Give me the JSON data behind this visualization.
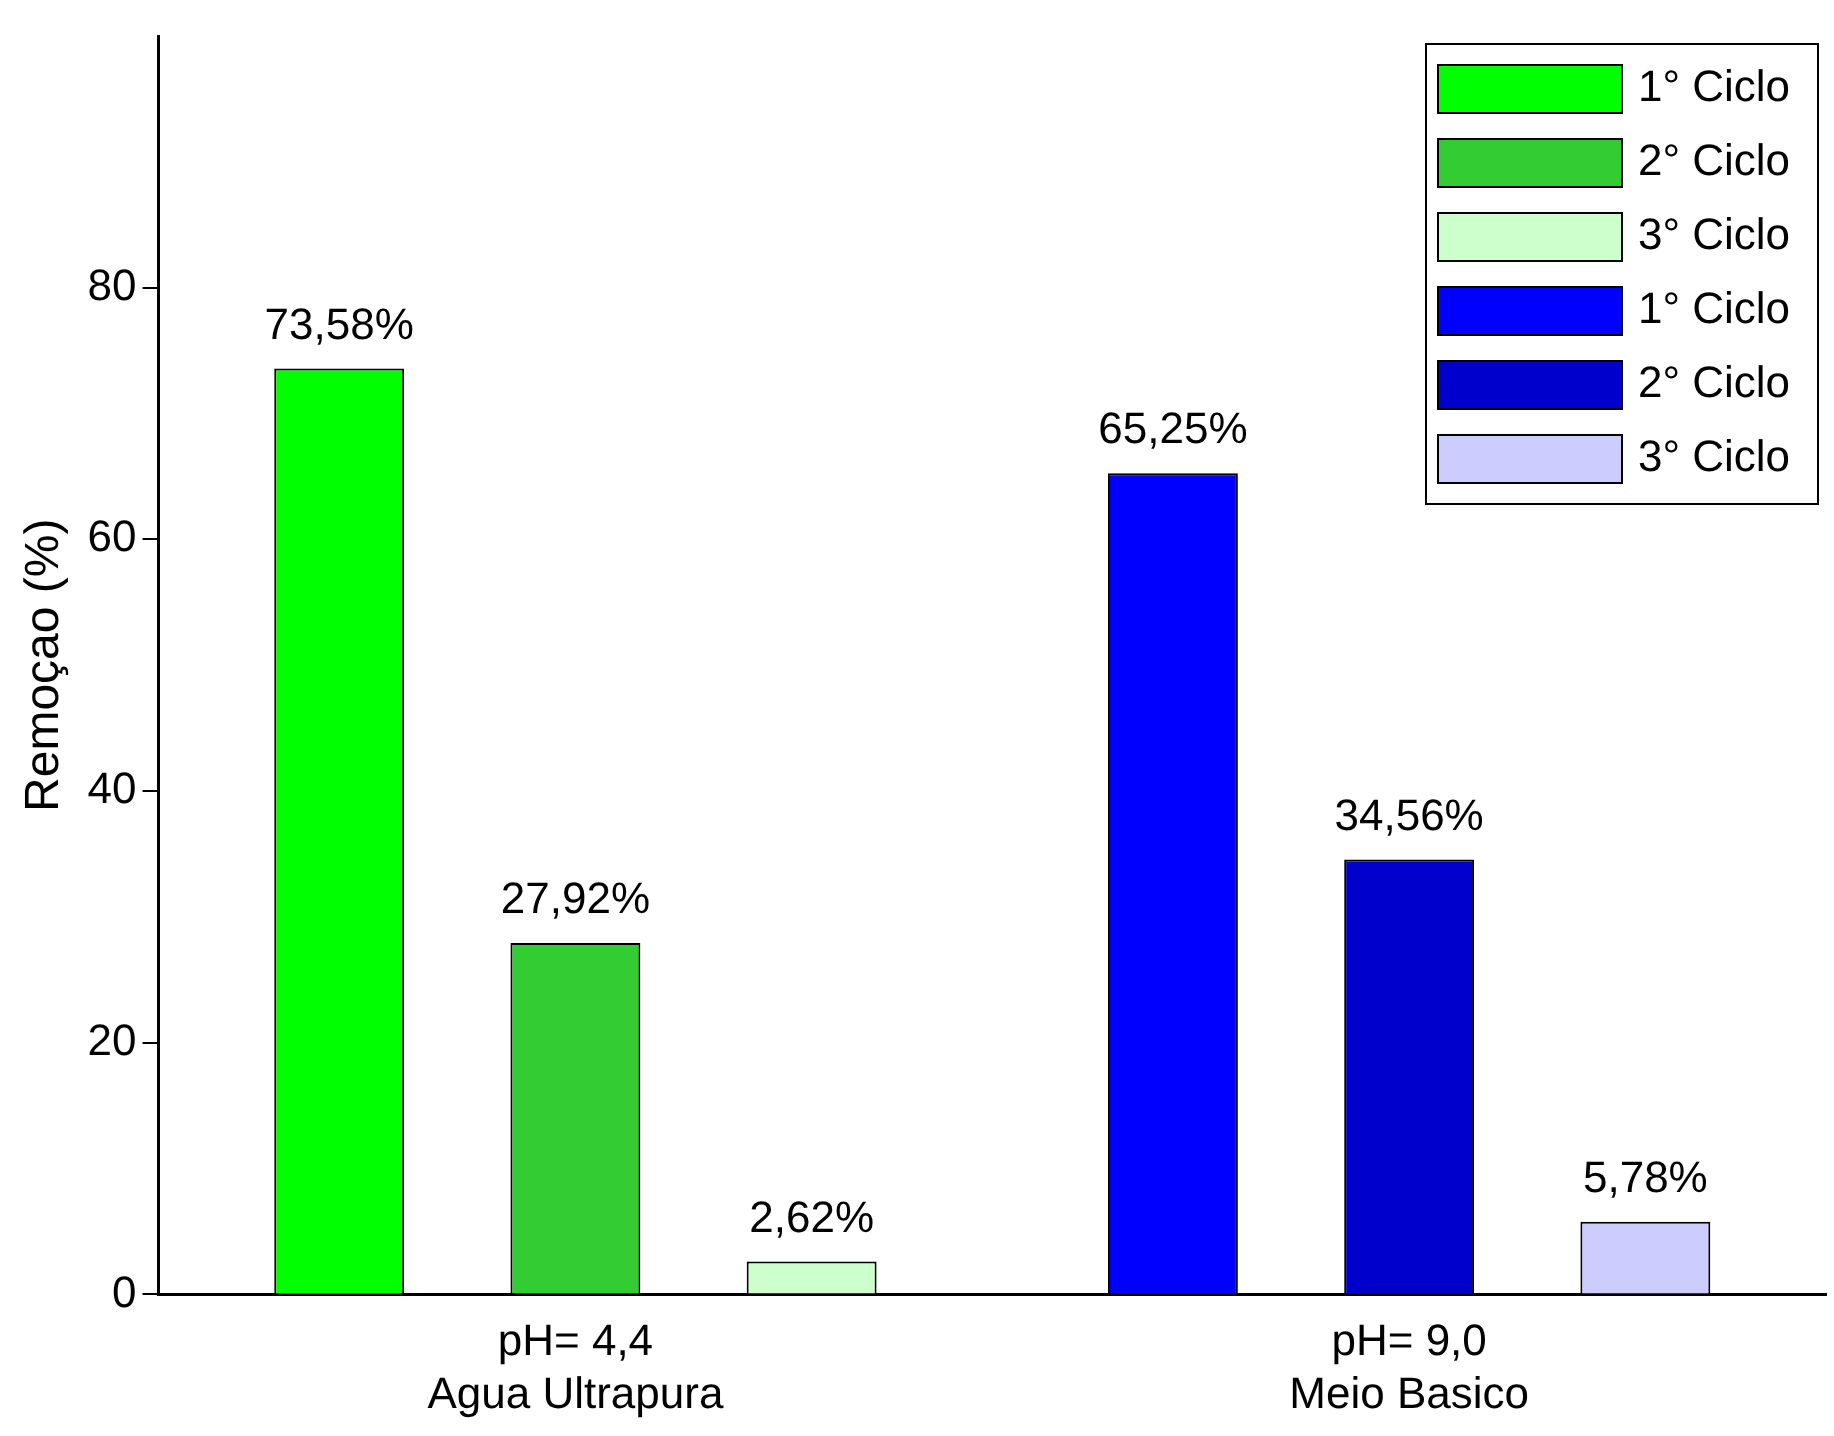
{
  "chart_data": {
    "type": "bar",
    "ylabel": "Remoçao (%)",
    "categories": [
      "pH= 4,4\nAgua Ultrapura",
      "pH= 9,0\nMeio Basico"
    ],
    "series": [
      {
        "name": "1° Ciclo",
        "color": "#00ff00",
        "values": [
          73.58,
          null
        ],
        "value_labels": [
          "73,58%",
          null
        ]
      },
      {
        "name": "2° Ciclo",
        "color": "#33cc33",
        "values": [
          27.92,
          null
        ],
        "value_labels": [
          "27,92%",
          null
        ]
      },
      {
        "name": "3° Ciclo",
        "color": "#ccffcc",
        "values": [
          2.62,
          null
        ],
        "value_labels": [
          "2,62%",
          null
        ]
      },
      {
        "name": "1° Ciclo",
        "color": "#0000ff",
        "values": [
          null,
          65.25
        ],
        "value_labels": [
          null,
          "65,25%"
        ]
      },
      {
        "name": "2° Ciclo",
        "color": "#0000cc",
        "values": [
          null,
          34.56
        ],
        "value_labels": [
          null,
          "34,56%"
        ]
      },
      {
        "name": "3° Ciclo",
        "color": "#ccccff",
        "values": [
          null,
          5.78
        ],
        "value_labels": [
          null,
          "5,78%"
        ]
      }
    ],
    "ylim": [
      0,
      100
    ],
    "yticks": [
      0,
      20,
      40,
      60,
      80
    ],
    "grid": false,
    "legend": "top right"
  }
}
